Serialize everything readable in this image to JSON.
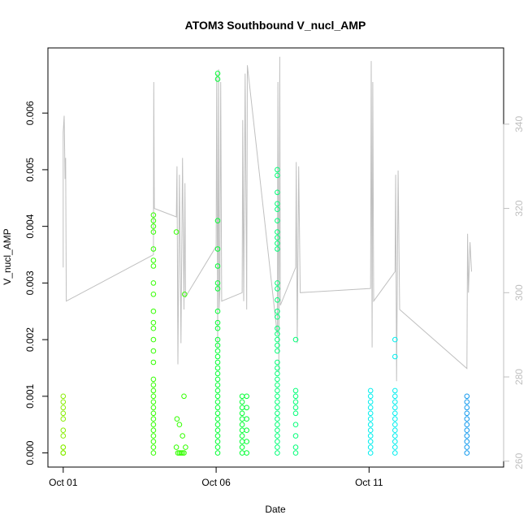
{
  "chart_data": {
    "type": "scatter",
    "title": "ATOM3 Southbound V_nucl_AMP",
    "xlabel": "Date",
    "ylabel": "V_nucl_AMP",
    "y2label": "",
    "x_ticks": [
      {
        "label": "Oct 01",
        "value": 1.0
      },
      {
        "label": "Oct 06",
        "value": 6.0
      },
      {
        "label": "Oct 11",
        "value": 11.0
      }
    ],
    "y_ticks": [
      "0.000",
      "0.001",
      "0.002",
      "0.003",
      "0.004",
      "0.005",
      "0.006"
    ],
    "y2_ticks": [
      "260",
      "280",
      "300",
      "320",
      "340"
    ],
    "xlim": [
      0.5,
      15.4
    ],
    "ylim": [
      -0.00025,
      0.00715
    ],
    "y2lim": [
      258.6,
      358.1
    ],
    "grid": false,
    "legend": "none",
    "secondary_line_color": "#c0c0c0",
    "series": [
      {
        "color": "#88ee00",
        "points": [
          [
            1.0,
            0.001
          ],
          [
            1.0,
            0.0009
          ],
          [
            1.0,
            0.0008
          ],
          [
            1.0,
            0.0007
          ],
          [
            1.0,
            0.0006
          ],
          [
            1.0,
            0.0004
          ],
          [
            1.0,
            0.0003
          ],
          [
            1.0,
            0.0001
          ],
          [
            1.0,
            0.0001
          ],
          [
            1.0,
            0.0
          ],
          [
            1.0,
            0.0
          ],
          [
            1.0,
            0.0
          ]
        ]
      },
      {
        "color": "#33ff00",
        "points": [
          [
            3.95,
            0.0042
          ],
          [
            3.95,
            0.0041
          ],
          [
            3.95,
            0.004
          ],
          [
            3.95,
            0.0039
          ],
          [
            3.95,
            0.0036
          ],
          [
            3.95,
            0.0034
          ],
          [
            3.95,
            0.0033
          ],
          [
            3.95,
            0.003
          ],
          [
            3.95,
            0.0028
          ],
          [
            3.95,
            0.0025
          ],
          [
            3.95,
            0.0023
          ],
          [
            3.95,
            0.0022
          ],
          [
            3.95,
            0.002
          ],
          [
            3.95,
            0.0018
          ],
          [
            3.95,
            0.0016
          ],
          [
            3.95,
            0.0013
          ],
          [
            3.95,
            0.0012
          ],
          [
            3.95,
            0.0011
          ],
          [
            3.95,
            0.001
          ],
          [
            3.95,
            0.0009
          ],
          [
            3.95,
            0.0008
          ],
          [
            3.95,
            0.0007
          ],
          [
            3.95,
            0.0006
          ],
          [
            3.95,
            0.0005
          ],
          [
            3.95,
            0.0004
          ],
          [
            3.95,
            0.0003
          ],
          [
            3.95,
            0.0002
          ],
          [
            3.95,
            0.0001
          ],
          [
            3.95,
            0.0
          ],
          [
            4.7,
            0.0039
          ],
          [
            4.72,
            0.0006
          ],
          [
            4.8,
            0.0005
          ],
          [
            4.9,
            0.0003
          ],
          [
            4.95,
            0.001
          ],
          [
            4.97,
            0.0028
          ],
          [
            4.7,
            0.0001
          ],
          [
            4.75,
            0.0
          ],
          [
            4.8,
            0.0
          ],
          [
            4.85,
            0.0
          ],
          [
            4.9,
            0.0
          ],
          [
            4.95,
            0.0
          ],
          [
            5.0,
            0.0001
          ]
        ]
      },
      {
        "color": "#00ff33",
        "points": [
          [
            6.05,
            0.0067
          ],
          [
            6.05,
            0.0066
          ],
          [
            6.05,
            0.0041
          ],
          [
            6.05,
            0.0036
          ],
          [
            6.05,
            0.0033
          ],
          [
            6.05,
            0.003
          ],
          [
            6.05,
            0.0029
          ],
          [
            6.05,
            0.0025
          ],
          [
            6.05,
            0.0023
          ],
          [
            6.05,
            0.0022
          ],
          [
            6.05,
            0.002
          ],
          [
            6.05,
            0.0019
          ],
          [
            6.05,
            0.0018
          ],
          [
            6.05,
            0.0017
          ],
          [
            6.05,
            0.0016
          ],
          [
            6.05,
            0.0015
          ],
          [
            6.05,
            0.0014
          ],
          [
            6.05,
            0.0013
          ],
          [
            6.05,
            0.0012
          ],
          [
            6.05,
            0.0011
          ],
          [
            6.05,
            0.001
          ],
          [
            6.05,
            0.0009
          ],
          [
            6.05,
            0.0008
          ],
          [
            6.05,
            0.0007
          ],
          [
            6.05,
            0.0006
          ],
          [
            6.05,
            0.0005
          ],
          [
            6.05,
            0.0004
          ],
          [
            6.05,
            0.0003
          ],
          [
            6.05,
            0.0002
          ],
          [
            6.05,
            0.0001
          ],
          [
            6.05,
            0.0
          ],
          [
            6.85,
            0.001
          ],
          [
            6.85,
            0.0009
          ],
          [
            6.85,
            0.0008
          ],
          [
            6.85,
            0.0007
          ],
          [
            6.85,
            0.0006
          ],
          [
            6.85,
            0.0005
          ],
          [
            6.85,
            0.0004
          ],
          [
            6.85,
            0.0003
          ],
          [
            6.85,
            0.0002
          ],
          [
            6.85,
            0.0001
          ],
          [
            6.85,
            0.0
          ],
          [
            7.0,
            0.001
          ],
          [
            7.0,
            0.0008
          ],
          [
            7.0,
            0.0006
          ],
          [
            7.0,
            0.0004
          ],
          [
            7.0,
            0.0002
          ],
          [
            7.0,
            0.0
          ]
        ]
      },
      {
        "color": "#00ff77",
        "points": [
          [
            8.0,
            0.005
          ],
          [
            8.0,
            0.0049
          ],
          [
            8.0,
            0.0046
          ],
          [
            8.0,
            0.0044
          ],
          [
            8.0,
            0.0043
          ],
          [
            8.0,
            0.0041
          ],
          [
            8.0,
            0.0039
          ],
          [
            8.0,
            0.0038
          ],
          [
            8.0,
            0.0037
          ],
          [
            8.0,
            0.0036
          ],
          [
            8.0,
            0.003
          ],
          [
            8.0,
            0.0029
          ],
          [
            8.0,
            0.0027
          ],
          [
            8.0,
            0.0025
          ],
          [
            8.0,
            0.0024
          ],
          [
            8.0,
            0.0022
          ],
          [
            8.0,
            0.0021
          ],
          [
            8.0,
            0.002
          ],
          [
            8.0,
            0.0019
          ],
          [
            8.0,
            0.0018
          ],
          [
            8.0,
            0.0016
          ],
          [
            8.0,
            0.0015
          ],
          [
            8.0,
            0.0014
          ],
          [
            8.0,
            0.0013
          ],
          [
            8.0,
            0.0012
          ],
          [
            8.0,
            0.0011
          ],
          [
            8.0,
            0.001
          ],
          [
            8.0,
            0.0009
          ],
          [
            8.0,
            0.0008
          ],
          [
            8.0,
            0.0007
          ],
          [
            8.0,
            0.0006
          ],
          [
            8.0,
            0.0005
          ],
          [
            8.0,
            0.0004
          ],
          [
            8.0,
            0.0003
          ],
          [
            8.0,
            0.0002
          ],
          [
            8.0,
            0.0001
          ],
          [
            8.0,
            0.0
          ],
          [
            8.6,
            0.002
          ],
          [
            8.6,
            0.0011
          ],
          [
            8.6,
            0.001
          ],
          [
            8.6,
            0.0009
          ],
          [
            8.6,
            0.0008
          ],
          [
            8.6,
            0.0007
          ],
          [
            8.6,
            0.0005
          ],
          [
            8.6,
            0.0003
          ],
          [
            8.6,
            0.0001
          ],
          [
            8.6,
            0.0
          ]
        ]
      },
      {
        "color": "#00eeee",
        "points": [
          [
            11.05,
            0.0011
          ],
          [
            11.05,
            0.001
          ],
          [
            11.05,
            0.0009
          ],
          [
            11.05,
            0.0008
          ],
          [
            11.05,
            0.0007
          ],
          [
            11.05,
            0.0006
          ],
          [
            11.05,
            0.0005
          ],
          [
            11.05,
            0.0004
          ],
          [
            11.05,
            0.0003
          ],
          [
            11.05,
            0.0002
          ],
          [
            11.05,
            0.0001
          ],
          [
            11.05,
            0.0
          ],
          [
            11.85,
            0.002
          ],
          [
            11.85,
            0.0017
          ],
          [
            11.85,
            0.0011
          ],
          [
            11.85,
            0.001
          ],
          [
            11.85,
            0.0009
          ],
          [
            11.85,
            0.0008
          ],
          [
            11.85,
            0.0007
          ],
          [
            11.85,
            0.0006
          ],
          [
            11.85,
            0.0005
          ],
          [
            11.85,
            0.0004
          ],
          [
            11.85,
            0.0003
          ],
          [
            11.85,
            0.0002
          ],
          [
            11.85,
            0.0001
          ],
          [
            11.85,
            0.0
          ]
        ]
      },
      {
        "color": "#1199ee",
        "points": [
          [
            14.2,
            0.001
          ],
          [
            14.2,
            0.0009
          ],
          [
            14.2,
            0.0008
          ],
          [
            14.2,
            0.0007
          ],
          [
            14.2,
            0.0006
          ],
          [
            14.2,
            0.0005
          ],
          [
            14.2,
            0.0004
          ],
          [
            14.2,
            0.0003
          ],
          [
            14.2,
            0.0002
          ],
          [
            14.2,
            0.0001
          ],
          [
            14.2,
            0.0
          ]
        ]
      }
    ],
    "secondary_line": [
      [
        1.0,
        306
      ],
      [
        1.0,
        338
      ],
      [
        1.03,
        342
      ],
      [
        1.06,
        327
      ],
      [
        1.08,
        332
      ],
      [
        1.1,
        298
      ],
      [
        3.95,
        309
      ],
      [
        3.96,
        350
      ],
      [
        3.98,
        320
      ],
      [
        4.7,
        318
      ],
      [
        4.72,
        330
      ],
      [
        4.75,
        283
      ],
      [
        4.8,
        328
      ],
      [
        4.85,
        288
      ],
      [
        4.9,
        332
      ],
      [
        4.95,
        296
      ],
      [
        4.98,
        326
      ],
      [
        5.0,
        299
      ],
      [
        6.0,
        311
      ],
      [
        6.02,
        352
      ],
      [
        6.05,
        287
      ],
      [
        6.08,
        353
      ],
      [
        6.1,
        296
      ],
      [
        6.12,
        300
      ],
      [
        6.15,
        350
      ],
      [
        6.18,
        298
      ],
      [
        6.85,
        300
      ],
      [
        6.87,
        341
      ],
      [
        6.9,
        298
      ],
      [
        6.95,
        352
      ],
      [
        7.0,
        296
      ],
      [
        7.02,
        354
      ],
      [
        8.0,
        290
      ],
      [
        8.02,
        350
      ],
      [
        8.05,
        281
      ],
      [
        8.08,
        356
      ],
      [
        8.1,
        297
      ],
      [
        8.6,
        306
      ],
      [
        8.62,
        331
      ],
      [
        8.65,
        288
      ],
      [
        8.7,
        330
      ],
      [
        8.75,
        300
      ],
      [
        11.05,
        301
      ],
      [
        11.07,
        355
      ],
      [
        11.1,
        287
      ],
      [
        11.12,
        350
      ],
      [
        11.15,
        298
      ],
      [
        11.85,
        305
      ],
      [
        11.87,
        328
      ],
      [
        11.9,
        279
      ],
      [
        11.95,
        329
      ],
      [
        12.0,
        296
      ],
      [
        14.2,
        282
      ],
      [
        14.22,
        314
      ],
      [
        14.25,
        300
      ],
      [
        14.3,
        312
      ],
      [
        14.35,
        305
      ]
    ]
  }
}
